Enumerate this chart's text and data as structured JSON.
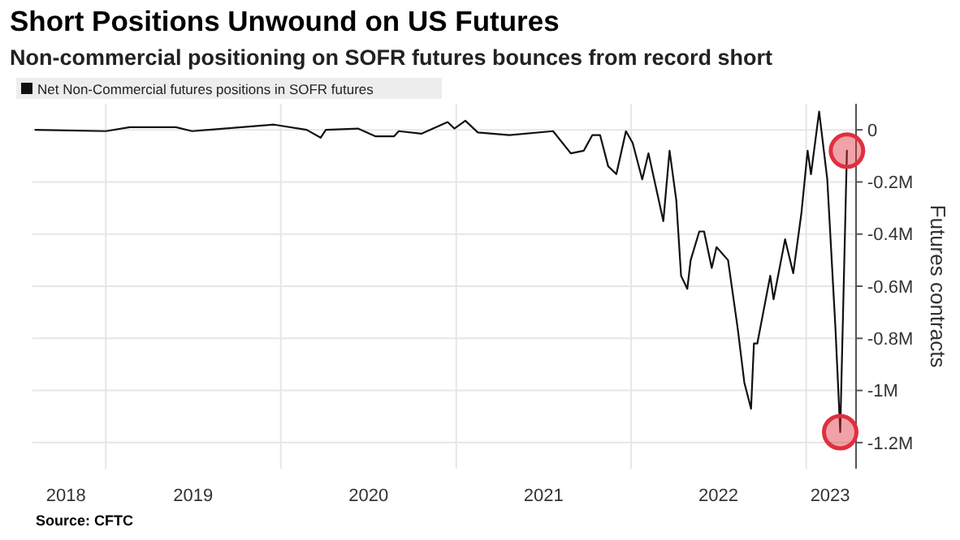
{
  "chart_data": {
    "type": "line",
    "title": "Short Positions Unwound on US Futures",
    "subtitle": "Non-commercial positioning on SOFR futures bounces from record short",
    "ylabel": "Futures contracts",
    "annotations": [
      "Source: CFTC"
    ],
    "legend": "top left",
    "grid": true,
    "xlim": [
      "2018-08-01",
      "2023-04-15"
    ],
    "xticks": [
      {
        "value": "2018-10-10",
        "label": "2018"
      },
      {
        "value": "2019-01-01",
        "label": null
      },
      {
        "value": "2019-07-02",
        "label": "2019"
      },
      {
        "value": "2020-01-01",
        "label": null
      },
      {
        "value": "2020-07-02",
        "label": "2020"
      },
      {
        "value": "2021-01-01",
        "label": null
      },
      {
        "value": "2021-07-02",
        "label": "2021"
      },
      {
        "value": "2022-01-01",
        "label": null
      },
      {
        "value": "2022-07-02",
        "label": "2022"
      },
      {
        "value": "2023-01-01",
        "label": null
      },
      {
        "value": "2023-02-20",
        "label": "2023"
      }
    ],
    "ylim": [
      -1300000,
      100000
    ],
    "yticks": [
      0,
      {
        "value": -200000,
        "label": "-0.2M"
      },
      {
        "value": -400000,
        "label": "-0.4M"
      },
      {
        "value": -600000,
        "label": "-0.6M"
      },
      {
        "value": -800000,
        "label": "-0.8M"
      },
      {
        "value": -1000000,
        "label": "-1M"
      },
      {
        "value": -1200000,
        "label": "-1.2M"
      }
    ],
    "series": [
      {
        "name": "Net Non-Commercial futures positions in SOFR futures",
        "color": "#111111",
        "marker": "none",
        "x": [
          "2018-08-07",
          "2019-01-01",
          "2019-02-20",
          "2019-05-27",
          "2019-06-30",
          "2019-12-18",
          "2020-02-24",
          "2020-03-24",
          "2020-04-04",
          "2020-06-10",
          "2020-07-17",
          "2020-08-24",
          "2020-09-03",
          "2020-10-20",
          "2020-12-14",
          "2020-12-28",
          "2021-01-20",
          "2021-02-15",
          "2021-04-22",
          "2021-07-22",
          "2021-08-28",
          "2021-09-24",
          "2021-10-12",
          "2021-10-28",
          "2021-11-14",
          "2021-12-01",
          "2021-12-21",
          "2022-01-04",
          "2022-01-24",
          "2022-02-06",
          "2022-03-09",
          "2022-03-22",
          "2022-04-05",
          "2022-04-15",
          "2022-04-28",
          "2022-05-05",
          "2022-05-23",
          "2022-06-02",
          "2022-06-18",
          "2022-06-28",
          "2022-07-22",
          "2022-08-11",
          "2022-08-25",
          "2022-09-08",
          "2022-09-14",
          "2022-09-21",
          "2022-10-18",
          "2022-10-25",
          "2022-11-18",
          "2022-12-05",
          "2022-12-22",
          "2023-01-04",
          "2023-01-11",
          "2023-01-28",
          "2023-02-14",
          "2023-03-03",
          "2023-03-13",
          "2023-03-24",
          "2023-03-27"
        ],
        "values": [
          0,
          -5000,
          10000,
          10000,
          -5000,
          20000,
          0,
          -30000,
          0,
          5000,
          -25000,
          -25000,
          -5000,
          -15000,
          30000,
          5000,
          35000,
          -10000,
          -20000,
          -5000,
          -90000,
          -80000,
          -20000,
          -20000,
          -140000,
          -170000,
          -5000,
          -50000,
          -190000,
          -90000,
          -350000,
          -80000,
          -270000,
          -560000,
          -610000,
          -500000,
          -390000,
          -390000,
          -530000,
          -450000,
          -500000,
          -760000,
          -970000,
          -1070000,
          -820000,
          -820000,
          -560000,
          -650000,
          -420000,
          -550000,
          -320000,
          -80000,
          -170000,
          70000,
          -190000,
          -760000,
          -1160000,
          -310000,
          -80000
        ]
      },
      {
        "type": "scatter",
        "color": "#e0303f",
        "marker": "circle",
        "x": [
          "2023-03-13",
          "2023-03-27"
        ],
        "values": [
          -1160000,
          -80000
        ]
      }
    ]
  }
}
